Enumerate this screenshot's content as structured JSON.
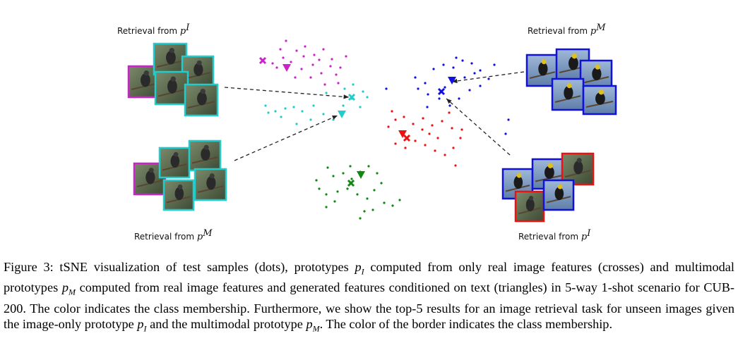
{
  "labels": {
    "top_left": "Retrieval from",
    "top_left_sym": "p",
    "top_left_sup": "I",
    "top_right": "Retrieval from",
    "top_right_sym": "p",
    "top_right_sup": "M",
    "bottom_left": "Retrieval from",
    "bottom_left_sym": "p",
    "bottom_left_sup": "M",
    "bottom_right": "Retrieval from",
    "bottom_right_sym": "p",
    "bottom_right_sup": "I"
  },
  "colors": {
    "magenta": "#cc22cc",
    "cyan": "#22cccc",
    "blue": "#1111dd",
    "red": "#ee1111",
    "green": "#118811"
  },
  "caption": {
    "t1": "Figure 3: tSNE visualization of test samples (dots), prototypes ",
    "pI_sym": "p",
    "pI_sub": "I",
    "t2": " computed from only real image features (crosses) and multimodal prototypes ",
    "pM_sym": "p",
    "pM_sub": "M",
    "t3": " computed from real image features and generated features conditioned on text (triangles) in 5-way 1-shot scenario for CUB-200. The color indicates the class membership. Furthermore, we show the top-5 results for an image retrieval task for unseen images given the image-only prototype ",
    "pI2_sym": "p",
    "pI2_sub": "I",
    "t4": " and the multimodal prototype ",
    "pM2_sym": "p",
    "pM2_sub": "M",
    "t5": ". The color of the border indicates the class membership."
  }
}
